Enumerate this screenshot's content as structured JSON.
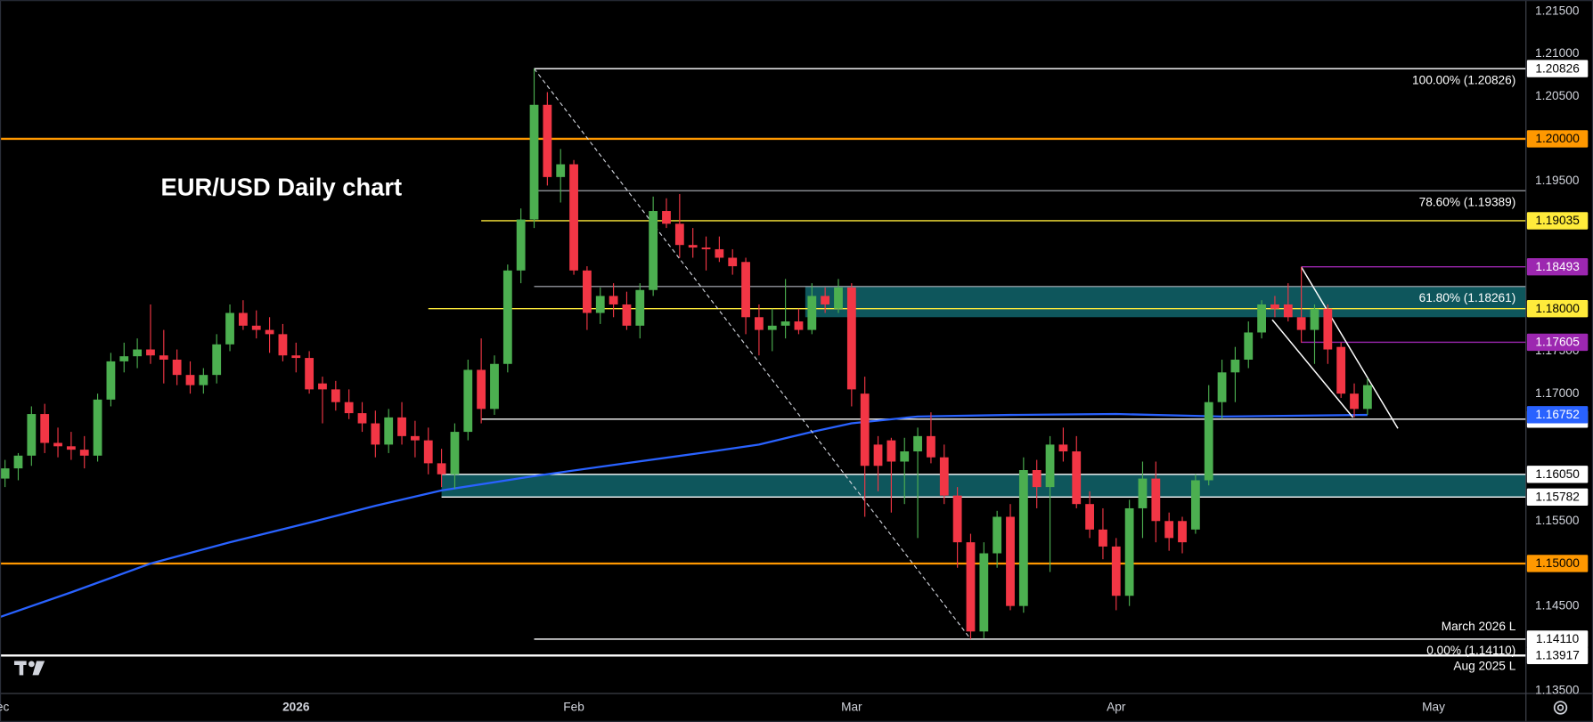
{
  "chart_data": {
    "type": "candlestick",
    "title": "EUR/USD Daily chart",
    "colors": {
      "up": "#4caf50",
      "down": "#f23645"
    },
    "ohlc": [
      [
        1.16,
        1.1622,
        1.159,
        1.1612
      ],
      [
        1.1612,
        1.163,
        1.1598,
        1.1627
      ],
      [
        1.1627,
        1.1685,
        1.1615,
        1.1676
      ],
      [
        1.1676,
        1.1688,
        1.163,
        1.1642
      ],
      [
        1.1642,
        1.166,
        1.1625,
        1.1638
      ],
      [
        1.1638,
        1.1655,
        1.1622,
        1.1634
      ],
      [
        1.1634,
        1.165,
        1.1612,
        1.1627
      ],
      [
        1.1627,
        1.17,
        1.162,
        1.1693
      ],
      [
        1.1693,
        1.1748,
        1.1685,
        1.1738
      ],
      [
        1.1738,
        1.176,
        1.1725,
        1.1744
      ],
      [
        1.1744,
        1.1765,
        1.173,
        1.1752
      ],
      [
        1.1752,
        1.1805,
        1.1735,
        1.1745
      ],
      [
        1.1745,
        1.1775,
        1.1712,
        1.174
      ],
      [
        1.174,
        1.1752,
        1.171,
        1.1722
      ],
      [
        1.1722,
        1.1738,
        1.17,
        1.171
      ],
      [
        1.171,
        1.173,
        1.17,
        1.1722
      ],
      [
        1.1722,
        1.177,
        1.1712,
        1.1758
      ],
      [
        1.1758,
        1.1805,
        1.175,
        1.1795
      ],
      [
        1.1795,
        1.181,
        1.1775,
        1.178
      ],
      [
        1.178,
        1.1798,
        1.1765,
        1.1775
      ],
      [
        1.1775,
        1.179,
        1.1748,
        1.177
      ],
      [
        1.177,
        1.1782,
        1.1738,
        1.1745
      ],
      [
        1.1745,
        1.176,
        1.1725,
        1.1742
      ],
      [
        1.1742,
        1.175,
        1.17,
        1.1705
      ],
      [
        1.1712,
        1.172,
        1.1665,
        1.1705
      ],
      [
        1.1705,
        1.1715,
        1.168,
        1.169
      ],
      [
        1.169,
        1.1705,
        1.167,
        1.1677
      ],
      [
        1.1677,
        1.169,
        1.1655,
        1.1665
      ],
      [
        1.1665,
        1.168,
        1.1625,
        1.164
      ],
      [
        1.164,
        1.1682,
        1.163,
        1.1672
      ],
      [
        1.1672,
        1.169,
        1.164,
        1.165
      ],
      [
        1.165,
        1.1668,
        1.1625,
        1.1645
      ],
      [
        1.1645,
        1.166,
        1.1605,
        1.1618
      ],
      [
        1.1618,
        1.1635,
        1.159,
        1.1605
      ],
      [
        1.1605,
        1.1665,
        1.1588,
        1.1655
      ],
      [
        1.1655,
        1.174,
        1.1645,
        1.1728
      ],
      [
        1.1728,
        1.1765,
        1.1665,
        1.1682
      ],
      [
        1.1682,
        1.1745,
        1.1675,
        1.1735
      ],
      [
        1.1735,
        1.1852,
        1.1725,
        1.1845
      ],
      [
        1.1845,
        1.1918,
        1.183,
        1.1905
      ],
      [
        1.1905,
        1.20826,
        1.1895,
        1.204
      ],
      [
        1.204,
        1.2055,
        1.1945,
        1.1955
      ],
      [
        1.1955,
        1.1988,
        1.1925,
        1.197
      ],
      [
        1.197,
        1.1975,
        1.184,
        1.1845
      ],
      [
        1.1845,
        1.185,
        1.1775,
        1.1795
      ],
      [
        1.1795,
        1.1825,
        1.1782,
        1.1815
      ],
      [
        1.1815,
        1.183,
        1.179,
        1.1805
      ],
      [
        1.1805,
        1.182,
        1.1775,
        1.178
      ],
      [
        1.178,
        1.183,
        1.1765,
        1.1822
      ],
      [
        1.1822,
        1.1932,
        1.1815,
        1.1915
      ],
      [
        1.1915,
        1.193,
        1.1895,
        1.19
      ],
      [
        1.19,
        1.1935,
        1.186,
        1.1875
      ],
      [
        1.1875,
        1.1895,
        1.186,
        1.1872
      ],
      [
        1.1872,
        1.1885,
        1.1845,
        1.187
      ],
      [
        1.187,
        1.1885,
        1.1855,
        1.186
      ],
      [
        1.186,
        1.187,
        1.184,
        1.185
      ],
      [
        1.1855,
        1.186,
        1.177,
        1.179
      ],
      [
        1.179,
        1.1805,
        1.1745,
        1.1775
      ],
      [
        1.1775,
        1.18,
        1.175,
        1.178
      ],
      [
        1.178,
        1.1835,
        1.1765,
        1.1785
      ],
      [
        1.1785,
        1.18,
        1.177,
        1.1775
      ],
      [
        1.1775,
        1.183,
        1.177,
        1.1815
      ],
      [
        1.1815,
        1.1825,
        1.1795,
        1.1805
      ],
      [
        1.18,
        1.1835,
        1.1795,
        1.1825
      ],
      [
        1.1825,
        1.183,
        1.1685,
        1.1705
      ],
      [
        1.17,
        1.172,
        1.1555,
        1.1615
      ],
      [
        1.164,
        1.165,
        1.1585,
        1.1615
      ],
      [
        1.1645,
        1.1648,
        1.156,
        1.162
      ],
      [
        1.162,
        1.1648,
        1.157,
        1.1632
      ],
      [
        1.1632,
        1.166,
        1.153,
        1.165
      ],
      [
        1.165,
        1.1678,
        1.1618,
        1.1625
      ],
      [
        1.1625,
        1.164,
        1.157,
        1.158
      ],
      [
        1.158,
        1.159,
        1.1495,
        1.1525
      ],
      [
        1.1525,
        1.1535,
        1.1411,
        1.142
      ],
      [
        1.142,
        1.1525,
        1.1412,
        1.1512
      ],
      [
        1.1512,
        1.1562,
        1.1495,
        1.1555
      ],
      [
        1.1555,
        1.157,
        1.1445,
        1.145
      ],
      [
        1.145,
        1.1625,
        1.1442,
        1.161
      ],
      [
        1.161,
        1.1622,
        1.1565,
        1.159
      ],
      [
        1.159,
        1.165,
        1.149,
        1.164
      ],
      [
        1.164,
        1.166,
        1.162,
        1.1632
      ],
      [
        1.1632,
        1.165,
        1.1565,
        1.157
      ],
      [
        1.157,
        1.1585,
        1.153,
        1.154
      ],
      [
        1.154,
        1.1565,
        1.1505,
        1.152
      ],
      [
        1.152,
        1.153,
        1.1445,
        1.1462
      ],
      [
        1.1462,
        1.1575,
        1.145,
        1.1565
      ],
      [
        1.1565,
        1.162,
        1.153,
        1.16
      ],
      [
        1.16,
        1.162,
        1.1525,
        1.155
      ],
      [
        1.155,
        1.156,
        1.1515,
        1.153
      ],
      [
        1.155,
        1.1555,
        1.1512,
        1.1525
      ],
      [
        1.154,
        1.1605,
        1.1535,
        1.1598
      ],
      [
        1.1598,
        1.171,
        1.1592,
        1.169
      ],
      [
        1.169,
        1.174,
        1.167,
        1.1725
      ],
      [
        1.1725,
        1.1755,
        1.169,
        1.174
      ],
      [
        1.174,
        1.1785,
        1.173,
        1.1772
      ],
      [
        1.1772,
        1.181,
        1.1765,
        1.1805
      ],
      [
        1.1805,
        1.1815,
        1.179,
        1.18
      ],
      [
        1.1805,
        1.183,
        1.1785,
        1.179
      ],
      [
        1.179,
        1.18493,
        1.176,
        1.1775
      ],
      [
        1.1775,
        1.1805,
        1.1735,
        1.18
      ],
      [
        1.18,
        1.1805,
        1.1735,
        1.1752
      ],
      [
        1.1755,
        1.176,
        1.1695,
        1.17
      ],
      [
        1.17,
        1.1712,
        1.1672,
        1.1682
      ],
      [
        1.1682,
        1.1718,
        1.1675,
        1.171
      ]
    ],
    "xlim": [
      -0.38,
      114.98
    ],
    "xticks": [
      {
        "value": -0.5,
        "label": "Dec"
      },
      {
        "value": 22,
        "label": "2026"
      },
      {
        "value": 43,
        "label": "Feb"
      },
      {
        "value": 64,
        "label": "Mar"
      },
      {
        "value": 84,
        "label": "Apr"
      },
      {
        "value": 108,
        "label": "May"
      }
    ],
    "ylim": [
      1.1347,
      1.21633
    ],
    "yticks": [
      {
        "value": 1.215,
        "label": "1.21500"
      },
      {
        "value": 1.21,
        "label": "1.21000"
      },
      {
        "value": 1.205,
        "label": "1.20500"
      },
      {
        "value": 1.195,
        "label": "1.19500"
      },
      {
        "value": 1.175,
        "label": "1.17500"
      },
      {
        "value": 1.17,
        "label": "1.17000"
      },
      {
        "value": 1.155,
        "label": "1.15500"
      },
      {
        "value": 1.145,
        "label": "1.14500"
      },
      {
        "value": 1.135,
        "label": "1.13500"
      }
    ],
    "grid": false,
    "ma": {
      "color": "#2962ff",
      "x": [
        -0.38,
        5,
        11,
        17,
        23,
        28,
        33,
        40,
        46,
        53,
        57,
        61,
        64,
        69,
        76,
        84,
        92,
        103
      ],
      "values": [
        1.1437,
        1.1466,
        1.15,
        1.1525,
        1.1548,
        1.1568,
        1.1586,
        1.1603,
        1.1616,
        1.1631,
        1.164,
        1.1655,
        1.1665,
        1.1673,
        1.1675,
        1.1676,
        1.1673,
        1.1675
      ],
      "last": {
        "value": 1.16752,
        "label": "1.16752"
      }
    },
    "zones": [
      {
        "from": 33,
        "top": 1.1605,
        "bottom": 1.15782,
        "color": "#0f5f66"
      },
      {
        "from": 60.5,
        "top": 1.1826,
        "bottom": 1.179,
        "color": "#0f5f66"
      }
    ],
    "fib": {
      "from": 40,
      "color": "#b2b5be",
      "levels": [
        {
          "value": 1.20826,
          "text": "100.00% (1.20826)"
        },
        {
          "value": 1.19389,
          "text": "78.60% (1.19389)"
        },
        {
          "value": 1.18261,
          "text": "61.80% (1.18261)"
        },
        {
          "value": 1.1411,
          "text": "0.00% (1.14110)"
        }
      ]
    },
    "levels": [
      {
        "value": 1.20826,
        "label": "1.20826",
        "color": "#ffffff",
        "from": 40
      },
      {
        "value": 1.2,
        "label": "1.20000",
        "color": "#ff9800"
      },
      {
        "value": 1.19035,
        "label": "1.19035",
        "color": "#ffeb3b",
        "from": 36
      },
      {
        "value": 1.18493,
        "label": "1.18493",
        "color": "#9c27b0",
        "from": 98
      },
      {
        "value": 1.18,
        "label": "1.18000",
        "color": "#ffeb3b",
        "from": 32
      },
      {
        "value": 1.17605,
        "label": "1.17605",
        "color": "#9c27b0",
        "from": 98
      },
      {
        "value": 1.167,
        "label": "1.16700",
        "color": "#ffffff",
        "from": 36
      },
      {
        "value": 1.1605,
        "label": "1.16050",
        "color": "#ffffff",
        "from": 33
      },
      {
        "value": 1.15782,
        "label": "1.15782",
        "color": "#ffffff",
        "from": 33
      },
      {
        "value": 1.15,
        "label": "1.15000",
        "color": "#ff9800"
      },
      {
        "value": 1.1411,
        "label": "1.14110",
        "color": "#ffffff",
        "from": 40
      },
      {
        "value": 1.13917,
        "label": "1.13917",
        "color": "#ffffff"
      }
    ],
    "notes": [
      {
        "text": "March 2026 L",
        "level": 1.1411,
        "side": "above"
      },
      {
        "text": "Aug 2025 L",
        "level": 1.13917,
        "side": "below"
      }
    ],
    "trendlines": [
      {
        "x": [
          98,
          105.3
        ],
        "values": [
          1.1849,
          1.1659
        ]
      },
      {
        "x": [
          95.8,
          101.9
        ],
        "values": [
          1.1787,
          1.1672
        ]
      }
    ]
  }
}
